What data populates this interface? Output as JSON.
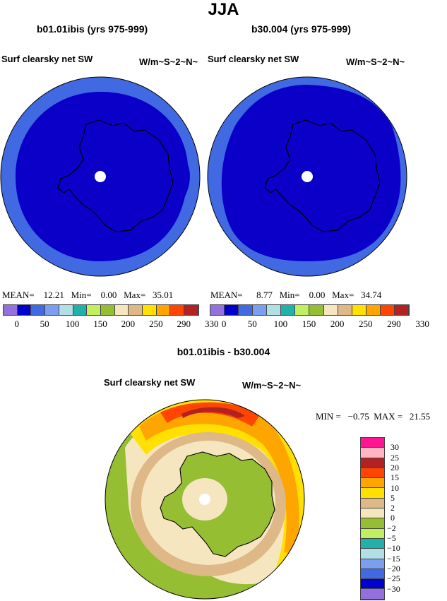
{
  "title": "JJA",
  "panels": [
    {
      "title": "b01.01ibis (yrs 975-999)",
      "variable": "Surf clearsky net SW",
      "units": "W/m~S~2~N~",
      "stats": {
        "mean_label": "MEAN=",
        "mean": "12.21",
        "min_label": "Min=",
        "min": "0.00",
        "max_label": "Max=",
        "max": "35.01"
      }
    },
    {
      "title": "b30.004 (yrs 975-999)",
      "variable": "Surf clearsky net SW",
      "units": "W/m~S~2~N~",
      "stats": {
        "mean_label": "MEAN=",
        "mean": "8.77",
        "min_label": "Min=",
        "min": "0.00",
        "max_label": "Max=",
        "max": "34.74"
      }
    }
  ],
  "colorbar": {
    "colors": [
      "#9370db",
      "#0000cd",
      "#4169e1",
      "#7b9ef0",
      "#b0e0e6",
      "#20b2aa",
      "#c0f060",
      "#96be32",
      "#f5e6c0",
      "#deb887",
      "#ffe000",
      "#ffa500",
      "#ff4500",
      "#b22222",
      "#ffb6c1",
      "#ff1493"
    ],
    "labels": [
      "0",
      "50",
      "100",
      "150",
      "200",
      "250",
      "290",
      "330"
    ]
  },
  "diff": {
    "title": "b01.01ibis - b30.004",
    "variable": "Surf clearsky net SW",
    "units": "W/m~S~2~N~",
    "stats": "MIN =   −0.75  MAX =   21.55",
    "colors": [
      "#ff1493",
      "#ffb6c1",
      "#b22222",
      "#ff4500",
      "#ffa500",
      "#ffe000",
      "#deb887",
      "#f5e6c0",
      "#96be32",
      "#c0f060",
      "#20b2aa",
      "#b0e0e6",
      "#7b9ef0",
      "#4169e1",
      "#0000cd",
      "#9370db"
    ],
    "labels": [
      "30",
      "25",
      "20",
      "15",
      "10",
      "5",
      "2",
      "0",
      "−2",
      "−5",
      "−10",
      "−15",
      "−20",
      "−25",
      "−30"
    ]
  }
}
